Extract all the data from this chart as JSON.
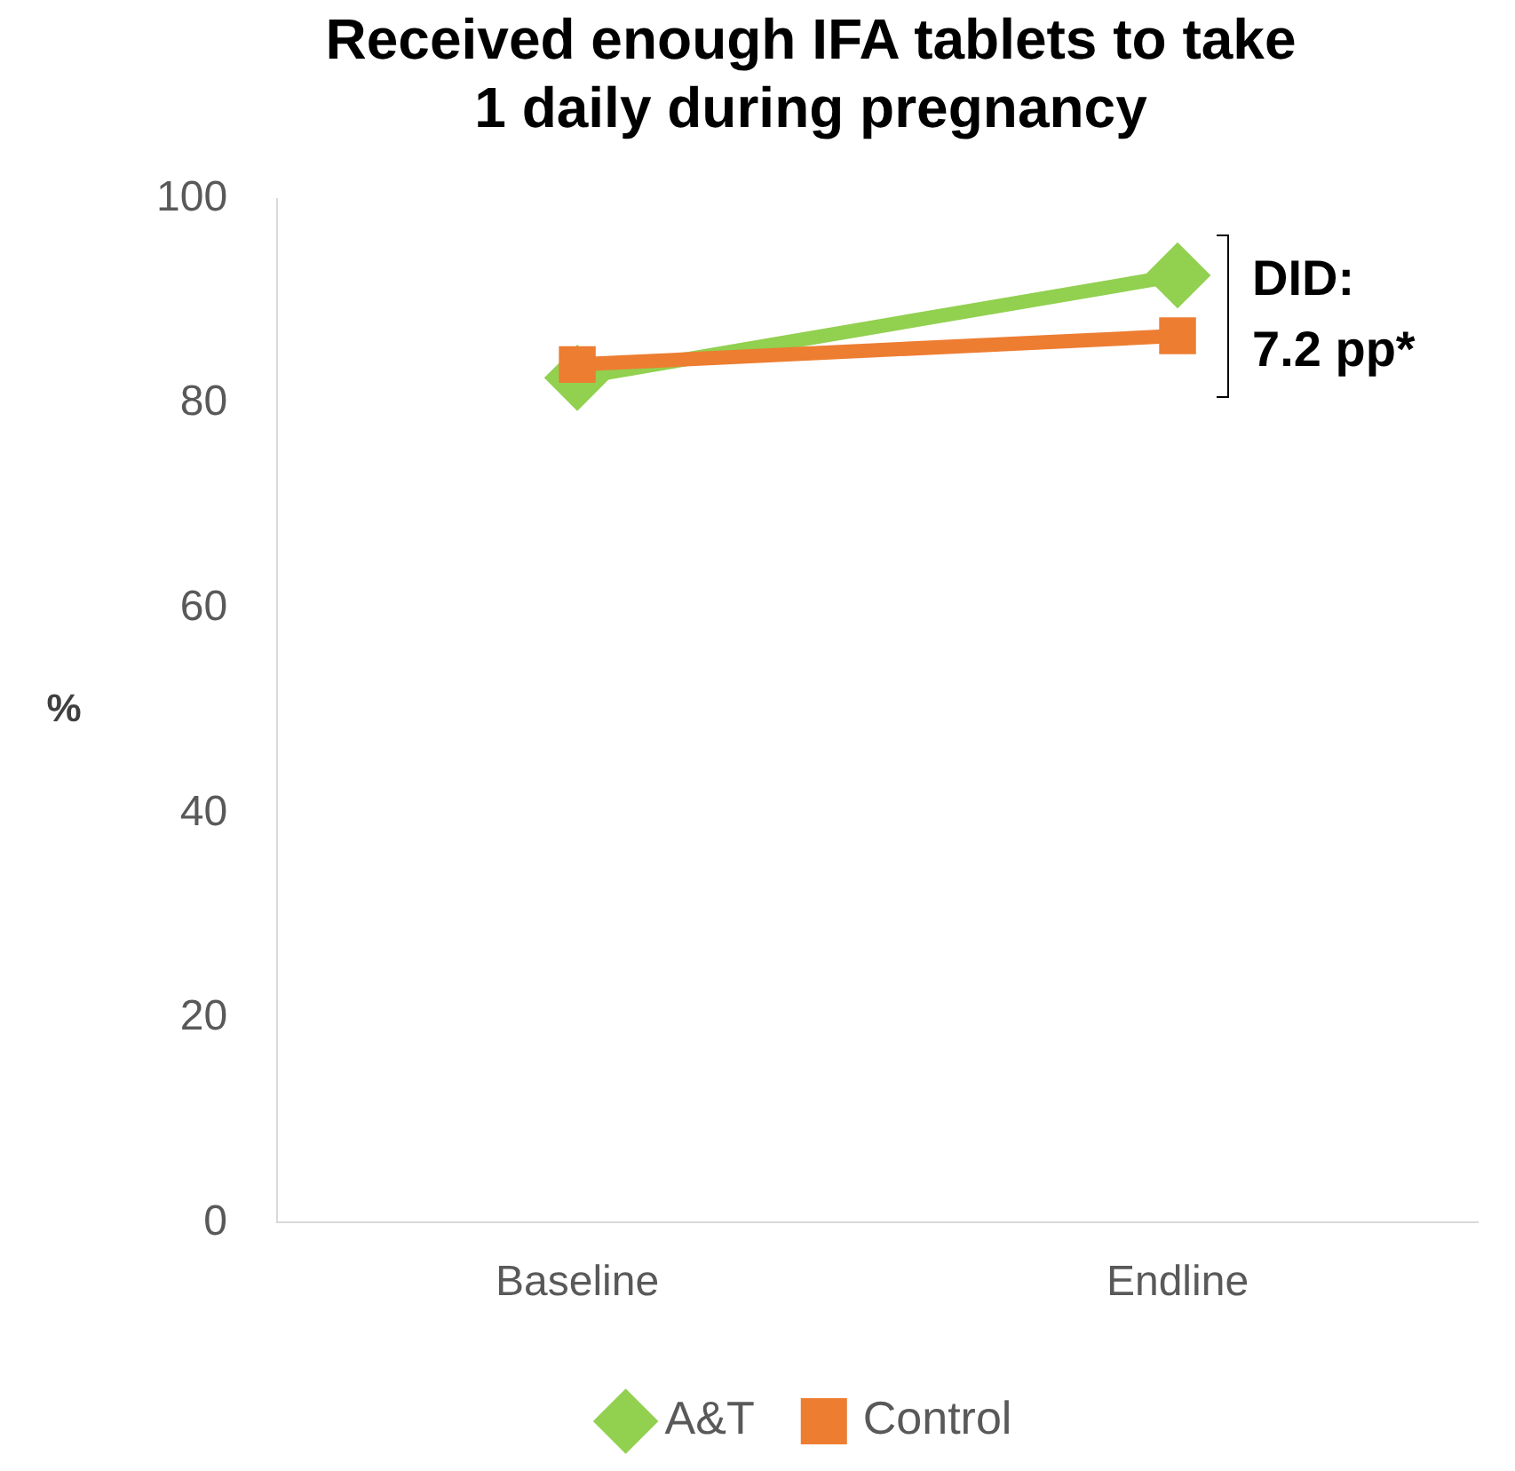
{
  "chart_data": {
    "type": "line",
    "title": [
      "Received enough IFA tablets to take",
      "1 daily during pregnancy"
    ],
    "ylabel": "%",
    "categories": [
      "Baseline",
      "Endline"
    ],
    "series": [
      {
        "name": "A&T",
        "color": "#92d050",
        "values": [
          82.5,
          92.5
        ],
        "marker": "diamond"
      },
      {
        "name": "Control",
        "color": "#ed7d31",
        "values": [
          83.8,
          86.6
        ],
        "marker": "square"
      }
    ],
    "ylim": [
      0,
      100
    ],
    "yticks": [
      0,
      20,
      40,
      60,
      80,
      100
    ],
    "grid": false,
    "legend": "bottom",
    "annotations": [
      "DID:",
      "7.2 pp*"
    ]
  }
}
